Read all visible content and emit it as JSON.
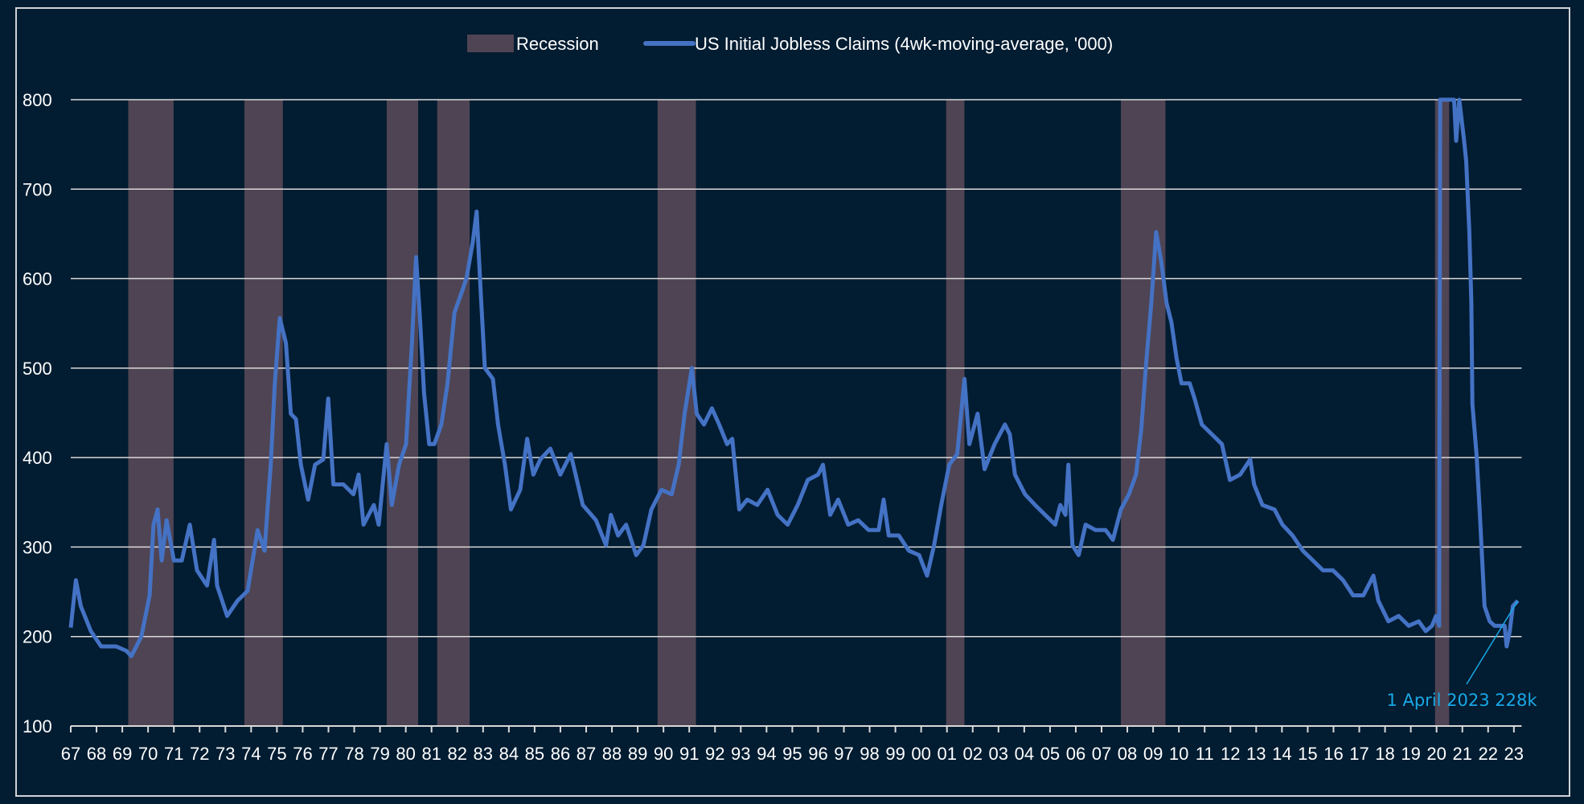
{
  "chart_data": {
    "type": "line",
    "title": "",
    "xlabel": "",
    "ylabel": "",
    "ylim": [
      100,
      800
    ],
    "yticks": [
      100,
      200,
      300,
      400,
      500,
      600,
      700,
      800
    ],
    "xlim": [
      1967,
      2023.3
    ],
    "xtick_labels": [
      "67",
      "68",
      "69",
      "70",
      "71",
      "72",
      "73",
      "74",
      "75",
      "76",
      "77",
      "78",
      "79",
      "80",
      "81",
      "82",
      "83",
      "84",
      "85",
      "86",
      "87",
      "88",
      "89",
      "90",
      "91",
      "92",
      "93",
      "94",
      "95",
      "96",
      "97",
      "98",
      "99",
      "00",
      "01",
      "02",
      "03",
      "04",
      "05",
      "06",
      "07",
      "08",
      "09",
      "10",
      "11",
      "12",
      "13",
      "14",
      "15",
      "16",
      "17",
      "18",
      "19",
      "20",
      "21",
      "22",
      "23"
    ],
    "grid": "horizontal",
    "legend_position": "top-center",
    "legend": [
      {
        "label": "Recession",
        "kind": "band",
        "color": "#4f4453"
      },
      {
        "label": "US Initial Jobless Claims (4wk-moving-average, '000)",
        "kind": "line",
        "color": "#4472c4"
      }
    ],
    "recessions": [
      [
        1969.23,
        1970.99
      ],
      [
        1973.74,
        1975.23
      ],
      [
        1979.26,
        1980.48
      ],
      [
        1981.22,
        1982.48
      ],
      [
        1989.77,
        1991.26
      ],
      [
        2000.97,
        2001.68
      ],
      [
        2007.75,
        2009.48
      ],
      [
        2019.94,
        2020.49
      ]
    ],
    "series": [
      {
        "name": "US Initial Jobless Claims (4wk-moving-average, '000)",
        "color": "#4472c4",
        "points": [
          [
            1967.0,
            210
          ],
          [
            1967.2,
            263
          ],
          [
            1967.39,
            234
          ],
          [
            1967.78,
            206
          ],
          [
            1968.18,
            189
          ],
          [
            1968.76,
            189
          ],
          [
            1969.16,
            184
          ],
          [
            1969.35,
            178
          ],
          [
            1969.74,
            200
          ],
          [
            1970.06,
            246
          ],
          [
            1970.21,
            325
          ],
          [
            1970.37,
            342
          ],
          [
            1970.53,
            285
          ],
          [
            1970.72,
            330
          ],
          [
            1971.0,
            285
          ],
          [
            1971.31,
            285
          ],
          [
            1971.62,
            325
          ],
          [
            1971.9,
            274
          ],
          [
            1972.29,
            257
          ],
          [
            1972.56,
            308
          ],
          [
            1972.68,
            257
          ],
          [
            1973.07,
            223
          ],
          [
            1973.47,
            240
          ],
          [
            1973.86,
            251
          ],
          [
            1974.25,
            319
          ],
          [
            1974.52,
            296
          ],
          [
            1974.76,
            392
          ],
          [
            1974.92,
            483
          ],
          [
            1975.11,
            556
          ],
          [
            1975.35,
            528
          ],
          [
            1975.54,
            449
          ],
          [
            1975.74,
            443
          ],
          [
            1975.93,
            392
          ],
          [
            1976.21,
            353
          ],
          [
            1976.48,
            392
          ],
          [
            1976.8,
            398
          ],
          [
            1976.99,
            466
          ],
          [
            1977.19,
            370
          ],
          [
            1977.58,
            370
          ],
          [
            1977.97,
            359
          ],
          [
            1978.17,
            381
          ],
          [
            1978.36,
            325
          ],
          [
            1978.76,
            347
          ],
          [
            1978.95,
            325
          ],
          [
            1979.26,
            415
          ],
          [
            1979.46,
            347
          ],
          [
            1979.74,
            392
          ],
          [
            1980.01,
            415
          ],
          [
            1980.24,
            528
          ],
          [
            1980.4,
            624
          ],
          [
            1980.56,
            551
          ],
          [
            1980.71,
            472
          ],
          [
            1980.91,
            415
          ],
          [
            1981.11,
            415
          ],
          [
            1981.38,
            437
          ],
          [
            1981.62,
            483
          ],
          [
            1981.89,
            562
          ],
          [
            1982.16,
            584
          ],
          [
            1982.36,
            601
          ],
          [
            1982.6,
            641
          ],
          [
            1982.75,
            675
          ],
          [
            1982.91,
            584
          ],
          [
            1983.07,
            500
          ],
          [
            1983.38,
            488
          ],
          [
            1983.58,
            437
          ],
          [
            1983.85,
            392
          ],
          [
            1984.08,
            342
          ],
          [
            1984.44,
            364
          ],
          [
            1984.71,
            421
          ],
          [
            1984.95,
            381
          ],
          [
            1985.22,
            398
          ],
          [
            1985.61,
            410
          ],
          [
            1986.0,
            381
          ],
          [
            1986.4,
            404
          ],
          [
            1986.59,
            381
          ],
          [
            1986.87,
            347
          ],
          [
            1987.38,
            330
          ],
          [
            1987.77,
            302
          ],
          [
            1987.96,
            336
          ],
          [
            1988.24,
            313
          ],
          [
            1988.55,
            325
          ],
          [
            1988.94,
            291
          ],
          [
            1989.22,
            302
          ],
          [
            1989.53,
            342
          ],
          [
            1989.92,
            364
          ],
          [
            1990.32,
            359
          ],
          [
            1990.59,
            392
          ],
          [
            1990.82,
            449
          ],
          [
            1991.1,
            500
          ],
          [
            1991.29,
            449
          ],
          [
            1991.57,
            437
          ],
          [
            1991.88,
            455
          ],
          [
            1992.16,
            437
          ],
          [
            1992.47,
            415
          ],
          [
            1992.67,
            421
          ],
          [
            1992.94,
            342
          ],
          [
            1993.25,
            353
          ],
          [
            1993.64,
            347
          ],
          [
            1994.04,
            364
          ],
          [
            1994.43,
            336
          ],
          [
            1994.82,
            325
          ],
          [
            1995.21,
            347
          ],
          [
            1995.6,
            375
          ],
          [
            1996.0,
            381
          ],
          [
            1996.19,
            392
          ],
          [
            1996.47,
            336
          ],
          [
            1996.78,
            353
          ],
          [
            1997.17,
            325
          ],
          [
            1997.56,
            330
          ],
          [
            1997.96,
            319
          ],
          [
            1998.35,
            319
          ],
          [
            1998.54,
            353
          ],
          [
            1998.74,
            313
          ],
          [
            1999.13,
            313
          ],
          [
            1999.52,
            296
          ],
          [
            1999.92,
            291
          ],
          [
            2000.23,
            268
          ],
          [
            2000.5,
            302
          ],
          [
            2000.78,
            347
          ],
          [
            2001.09,
            392
          ],
          [
            2001.4,
            404
          ],
          [
            2001.68,
            488
          ],
          [
            2001.87,
            415
          ],
          [
            2002.19,
            449
          ],
          [
            2002.46,
            387
          ],
          [
            2002.85,
            415
          ],
          [
            2003.25,
            437
          ],
          [
            2003.44,
            426
          ],
          [
            2003.64,
            381
          ],
          [
            2004.03,
            359
          ],
          [
            2004.42,
            347
          ],
          [
            2004.81,
            336
          ],
          [
            2005.2,
            325
          ],
          [
            2005.4,
            347
          ],
          [
            2005.6,
            336
          ],
          [
            2005.71,
            392
          ],
          [
            2005.87,
            302
          ],
          [
            2006.11,
            291
          ],
          [
            2006.38,
            325
          ],
          [
            2006.77,
            319
          ],
          [
            2007.16,
            319
          ],
          [
            2007.44,
            308
          ],
          [
            2007.75,
            342
          ],
          [
            2008.06,
            359
          ],
          [
            2008.34,
            381
          ],
          [
            2008.54,
            432
          ],
          [
            2008.73,
            505
          ],
          [
            2008.93,
            573
          ],
          [
            2009.12,
            652
          ],
          [
            2009.32,
            618
          ],
          [
            2009.52,
            573
          ],
          [
            2009.71,
            551
          ],
          [
            2009.91,
            511
          ],
          [
            2010.1,
            483
          ],
          [
            2010.42,
            483
          ],
          [
            2010.61,
            466
          ],
          [
            2010.89,
            437
          ],
          [
            2011.28,
            426
          ],
          [
            2011.67,
            415
          ],
          [
            2011.98,
            375
          ],
          [
            2012.38,
            381
          ],
          [
            2012.77,
            398
          ],
          [
            2012.92,
            370
          ],
          [
            2013.24,
            347
          ],
          [
            2013.71,
            342
          ],
          [
            2014.02,
            325
          ],
          [
            2014.41,
            313
          ],
          [
            2014.81,
            296
          ],
          [
            2015.2,
            285
          ],
          [
            2015.59,
            274
          ],
          [
            2015.98,
            274
          ],
          [
            2016.37,
            263
          ],
          [
            2016.76,
            246
          ],
          [
            2017.16,
            246
          ],
          [
            2017.55,
            268
          ],
          [
            2017.74,
            240
          ],
          [
            2018.13,
            217
          ],
          [
            2018.53,
            223
          ],
          [
            2018.92,
            212
          ],
          [
            2019.31,
            217
          ],
          [
            2019.58,
            206
          ],
          [
            2019.82,
            212
          ],
          [
            2019.98,
            223
          ],
          [
            2020.1,
            212
          ],
          [
            2020.14,
            800
          ],
          [
            2020.68,
            800
          ],
          [
            2020.76,
            754
          ],
          [
            2020.88,
            800
          ],
          [
            2021.07,
            754
          ],
          [
            2021.15,
            731
          ],
          [
            2021.27,
            652
          ],
          [
            2021.35,
            573
          ],
          [
            2021.39,
            460
          ],
          [
            2021.55,
            404
          ],
          [
            2021.66,
            347
          ],
          [
            2021.86,
            234
          ],
          [
            2022.06,
            217
          ],
          [
            2022.25,
            212
          ],
          [
            2022.64,
            212
          ],
          [
            2022.72,
            189
          ],
          [
            2022.84,
            206
          ],
          [
            2022.96,
            234
          ],
          [
            2023.15,
            240
          ]
        ]
      }
    ],
    "annotations": [
      {
        "text": "1 April 2023 228k",
        "x": 2023.15,
        "y": 240,
        "color": "#18a8e6"
      }
    ]
  }
}
